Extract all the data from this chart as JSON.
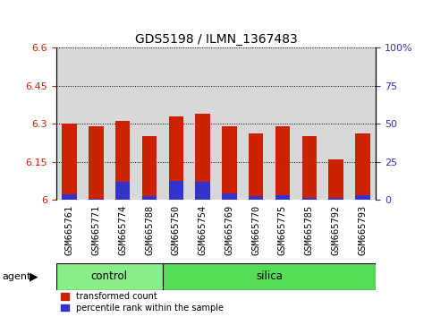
{
  "title": "GDS5198 / ILMN_1367483",
  "samples": [
    "GSM665761",
    "GSM665771",
    "GSM665774",
    "GSM665788",
    "GSM665750",
    "GSM665754",
    "GSM665769",
    "GSM665770",
    "GSM665775",
    "GSM665785",
    "GSM665792",
    "GSM665793"
  ],
  "groups": [
    "control",
    "control",
    "control",
    "control",
    "silica",
    "silica",
    "silica",
    "silica",
    "silica",
    "silica",
    "silica",
    "silica"
  ],
  "transformed_count": [
    6.3,
    6.29,
    6.31,
    6.25,
    6.33,
    6.34,
    6.29,
    6.26,
    6.29,
    6.25,
    6.16,
    6.26
  ],
  "percentile_rank_pct": [
    3.5,
    0.5,
    12.0,
    2.5,
    12.5,
    12.0,
    4.0,
    2.5,
    3.0,
    1.0,
    1.0,
    3.0
  ],
  "ymin": 6.0,
  "ymax": 6.6,
  "yticks": [
    6.0,
    6.15,
    6.3,
    6.45,
    6.6
  ],
  "ytick_labels": [
    "6",
    "6.15",
    "6.3",
    "6.45",
    "6.6"
  ],
  "right_yticks": [
    0,
    25,
    50,
    75,
    100
  ],
  "right_ytick_labels": [
    "0",
    "25",
    "50",
    "75",
    "100%"
  ],
  "bar_color_red": "#cc2200",
  "bar_color_blue": "#3333cc",
  "bar_width": 0.55,
  "plot_bg": "#d8d8d8",
  "sample_area_bg": "#c8c8c8",
  "group_color_control": "#88ee88",
  "group_color_silica": "#55dd55",
  "agent_label": "agent",
  "figure_bg": "#ffffff",
  "left_label_color": "#cc2200",
  "right_label_color": "#3333bb",
  "title_fontsize": 10,
  "tick_fontsize": 8,
  "sample_fontsize": 7.5
}
